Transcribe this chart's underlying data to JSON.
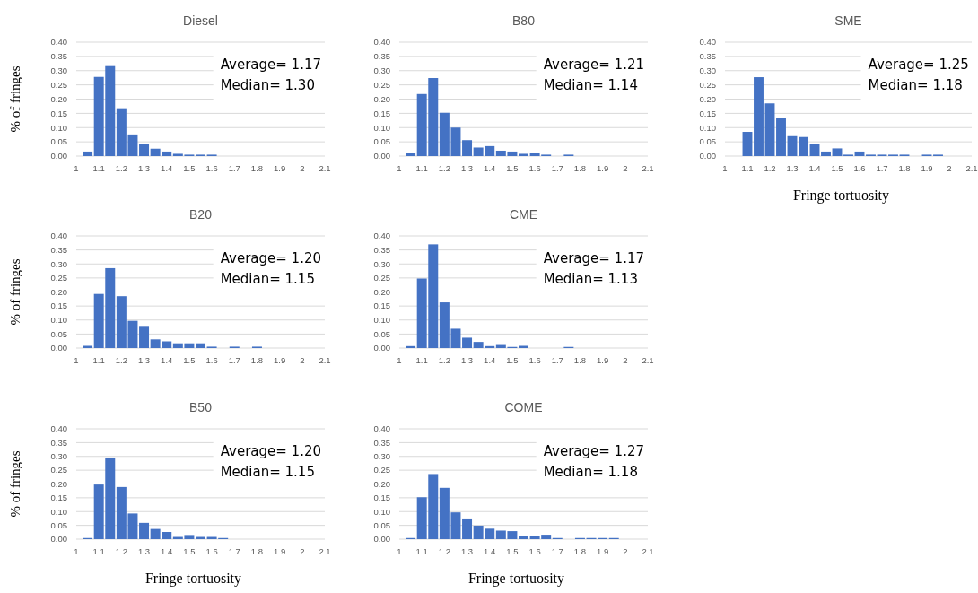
{
  "chart_data": [
    {
      "type": "histogram",
      "title": "Diesel",
      "ylabel": "% of fringes",
      "color": "#4472c4",
      "grid": "y",
      "bins": [
        1.025,
        1.075,
        1.125,
        1.175,
        1.225,
        1.275,
        1.325,
        1.375,
        1.425,
        1.475,
        1.525,
        1.575,
        1.625,
        1.675,
        1.725,
        1.775,
        1.825,
        1.875,
        1.925,
        1.975,
        2.025,
        2.075
      ],
      "values": [
        0.016,
        0.278,
        0.316,
        0.168,
        0.076,
        0.041,
        0.026,
        0.016,
        0.008,
        0.005,
        0.005,
        0.005,
        0,
        0,
        0,
        0,
        0,
        0,
        0,
        0,
        0
      ],
      "xlim": [
        1,
        2.1
      ],
      "xticks": [
        1,
        1.1,
        1.2,
        1.3,
        1.4,
        1.5,
        1.6,
        1.7,
        1.8,
        1.9,
        2,
        2.1
      ],
      "ylim": [
        0,
        0.4
      ],
      "yticks": [
        {
          "value": 0,
          "label": "0.00"
        },
        {
          "value": 0.05,
          "label": "0.05"
        },
        {
          "value": 0.1,
          "label": "0.10"
        },
        {
          "value": 0.15,
          "label": "0.15"
        },
        {
          "value": 0.2,
          "label": "0.20"
        },
        {
          "value": 0.25,
          "label": "0.25"
        },
        {
          "value": 0.3,
          "label": "0.30"
        },
        {
          "value": 0.35,
          "label": "0.35"
        },
        {
          "value": 0.4,
          "label": "0.40"
        }
      ],
      "annotations": [
        "Average= 1.17",
        "Median= 1.30"
      ]
    },
    {
      "type": "histogram",
      "title": "B80",
      "color": "#4472c4",
      "grid": "y",
      "bins": [
        1.025,
        1.075,
        1.125,
        1.175,
        1.225,
        1.275,
        1.325,
        1.375,
        1.425,
        1.475,
        1.525,
        1.575,
        1.625,
        1.675,
        1.725,
        1.775,
        1.825,
        1.875,
        1.925,
        1.975,
        2.025,
        2.075
      ],
      "values": [
        0.012,
        0.218,
        0.274,
        0.152,
        0.1,
        0.056,
        0.03,
        0.035,
        0.019,
        0.016,
        0.008,
        0.012,
        0.005,
        0,
        0.005,
        0,
        0,
        0,
        0,
        0,
        0
      ],
      "xlim": [
        1,
        2.1
      ],
      "xticks": [
        1,
        1.1,
        1.2,
        1.3,
        1.4,
        1.5,
        1.6,
        1.7,
        1.8,
        1.9,
        2,
        2.1
      ],
      "ylim": [
        0,
        0.4
      ],
      "yticks": [
        {
          "value": 0,
          "label": "0.00"
        },
        {
          "value": 0.05,
          "label": "0.05"
        },
        {
          "value": 0.1,
          "label": "0.10"
        },
        {
          "value": 0.15,
          "label": "0.15"
        },
        {
          "value": 0.2,
          "label": "0.20"
        },
        {
          "value": 0.25,
          "label": "0.25"
        },
        {
          "value": 0.3,
          "label": "0.30"
        },
        {
          "value": 0.35,
          "label": "0.35"
        },
        {
          "value": 0.4,
          "label": "0.40"
        }
      ],
      "annotations": [
        "Average= 1.21",
        "Median= 1.14"
      ]
    },
    {
      "type": "histogram",
      "title": "SME",
      "xlabel": "Fringe tortuosity",
      "color": "#4472c4",
      "grid": "y",
      "bins": [
        1.025,
        1.075,
        1.125,
        1.175,
        1.225,
        1.275,
        1.325,
        1.375,
        1.425,
        1.475,
        1.525,
        1.575,
        1.625,
        1.675,
        1.725,
        1.775,
        1.825,
        1.875,
        1.925,
        1.975,
        2.025,
        2.075
      ],
      "values": [
        0,
        0.085,
        0.277,
        0.185,
        0.134,
        0.07,
        0.067,
        0.041,
        0.016,
        0.027,
        0.005,
        0.016,
        0.005,
        0.005,
        0.005,
        0.005,
        0,
        0.005,
        0.005,
        0,
        0
      ],
      "xlim": [
        1,
        2.1
      ],
      "xticks": [
        1,
        1.1,
        1.2,
        1.3,
        1.4,
        1.5,
        1.6,
        1.7,
        1.8,
        1.9,
        2,
        2.1
      ],
      "ylim": [
        0,
        0.4
      ],
      "yticks": [
        {
          "value": 0,
          "label": "0.00"
        },
        {
          "value": 0.05,
          "label": "0.05"
        },
        {
          "value": 0.1,
          "label": "0.10"
        },
        {
          "value": 0.15,
          "label": "0.15"
        },
        {
          "value": 0.2,
          "label": "0.20"
        },
        {
          "value": 0.25,
          "label": "0.25"
        },
        {
          "value": 0.3,
          "label": "0.30"
        },
        {
          "value": 0.35,
          "label": "0.35"
        },
        {
          "value": 0.4,
          "label": "0.40"
        }
      ],
      "annotations": [
        "Average= 1.25",
        "Median= 1.18"
      ]
    },
    {
      "type": "histogram",
      "title": "B20",
      "ylabel": "% of fringes",
      "color": "#4472c4",
      "grid": "y",
      "bins": [
        1.025,
        1.075,
        1.125,
        1.175,
        1.225,
        1.275,
        1.325,
        1.375,
        1.425,
        1.475,
        1.525,
        1.575,
        1.625,
        1.675,
        1.725,
        1.775,
        1.825,
        1.875,
        1.925,
        1.975,
        2.025,
        2.075
      ],
      "values": [
        0.008,
        0.193,
        0.285,
        0.185,
        0.097,
        0.079,
        0.031,
        0.024,
        0.017,
        0.017,
        0.017,
        0.005,
        0,
        0.005,
        0,
        0.005,
        0,
        0,
        0,
        0,
        0
      ],
      "xlim": [
        1,
        2.1
      ],
      "xticks": [
        1,
        1.1,
        1.2,
        1.3,
        1.4,
        1.5,
        1.6,
        1.7,
        1.8,
        1.9,
        2,
        2.1
      ],
      "ylim": [
        0,
        0.4
      ],
      "yticks": [
        {
          "value": 0,
          "label": "0.00"
        },
        {
          "value": 0.05,
          "label": "0.05"
        },
        {
          "value": 0.1,
          "label": "0.10"
        },
        {
          "value": 0.15,
          "label": "0.15"
        },
        {
          "value": 0.2,
          "label": "0.20"
        },
        {
          "value": 0.25,
          "label": "0.25"
        },
        {
          "value": 0.3,
          "label": "0.30"
        },
        {
          "value": 0.35,
          "label": "0.35"
        },
        {
          "value": 0.4,
          "label": "0.40"
        }
      ],
      "annotations": [
        "Average= 1.20",
        "Median= 1.15"
      ]
    },
    {
      "type": "histogram",
      "title": "CME",
      "color": "#4472c4",
      "grid": "y",
      "bins": [
        1.025,
        1.075,
        1.125,
        1.175,
        1.225,
        1.275,
        1.325,
        1.375,
        1.425,
        1.475,
        1.525,
        1.575,
        1.625,
        1.675,
        1.725,
        1.775,
        1.825,
        1.875,
        1.925,
        1.975,
        2.025,
        2.075
      ],
      "values": [
        0.007,
        0.248,
        0.37,
        0.163,
        0.069,
        0.037,
        0.022,
        0.007,
        0.011,
        0.004,
        0.008,
        0,
        0,
        0,
        0.004,
        0,
        0,
        0,
        0,
        0,
        0
      ],
      "xlim": [
        1,
        2.1
      ],
      "xticks": [
        1,
        1.1,
        1.2,
        1.3,
        1.4,
        1.5,
        1.6,
        1.7,
        1.8,
        1.9,
        2,
        2.1
      ],
      "ylim": [
        0,
        0.4
      ],
      "yticks": [
        {
          "value": 0,
          "label": "0.00"
        },
        {
          "value": 0.05,
          "label": "0.05"
        },
        {
          "value": 0.1,
          "label": "0.10"
        },
        {
          "value": 0.15,
          "label": "0.15"
        },
        {
          "value": 0.2,
          "label": "0.20"
        },
        {
          "value": 0.25,
          "label": "0.25"
        },
        {
          "value": 0.3,
          "label": "0.30"
        },
        {
          "value": 0.35,
          "label": "0.35"
        },
        {
          "value": 0.4,
          "label": "0.40"
        }
      ],
      "annotations": [
        "Average= 1.17",
        "Median= 1.13"
      ]
    },
    {
      "type": "histogram",
      "title": "B50",
      "ylabel": "% of fringes",
      "xlabel": "Fringe tortuosity",
      "color": "#4472c4",
      "grid": "y",
      "bins": [
        1.025,
        1.075,
        1.125,
        1.175,
        1.225,
        1.275,
        1.325,
        1.375,
        1.425,
        1.475,
        1.525,
        1.575,
        1.625,
        1.675,
        1.725,
        1.775,
        1.825,
        1.875,
        1.925,
        1.975,
        2.025,
        2.075
      ],
      "values": [
        0.004,
        0.198,
        0.296,
        0.189,
        0.093,
        0.059,
        0.037,
        0.026,
        0.008,
        0.015,
        0.008,
        0.008,
        0.004,
        0,
        0,
        0,
        0,
        0,
        0,
        0,
        0
      ],
      "xlim": [
        1,
        2.1
      ],
      "xticks": [
        1,
        1.1,
        1.2,
        1.3,
        1.4,
        1.5,
        1.6,
        1.7,
        1.8,
        1.9,
        2,
        2.1
      ],
      "ylim": [
        0,
        0.4
      ],
      "yticks": [
        {
          "value": 0,
          "label": "0.00"
        },
        {
          "value": 0.05,
          "label": "0.05"
        },
        {
          "value": 0.1,
          "label": "0.10"
        },
        {
          "value": 0.15,
          "label": "0.15"
        },
        {
          "value": 0.2,
          "label": "0.20"
        },
        {
          "value": 0.25,
          "label": "0.25"
        },
        {
          "value": 0.3,
          "label": "0.30"
        },
        {
          "value": 0.35,
          "label": "0.35"
        },
        {
          "value": 0.4,
          "label": "0.40"
        }
      ],
      "annotations": [
        "Average= 1.20",
        "Median= 1.15"
      ]
    },
    {
      "type": "histogram",
      "title": "COME",
      "xlabel": "Fringe tortuosity",
      "color": "#4472c4",
      "grid": "y",
      "bins": [
        1.025,
        1.075,
        1.125,
        1.175,
        1.225,
        1.275,
        1.325,
        1.375,
        1.425,
        1.475,
        1.525,
        1.575,
        1.625,
        1.675,
        1.725,
        1.775,
        1.825,
        1.875,
        1.925,
        1.975,
        2.025,
        2.075
      ],
      "values": [
        0.004,
        0.152,
        0.236,
        0.186,
        0.097,
        0.075,
        0.049,
        0.038,
        0.031,
        0.029,
        0.012,
        0.012,
        0.016,
        0.004,
        0,
        0.004,
        0.004,
        0.004,
        0.004,
        0,
        0
      ],
      "xlim": [
        1,
        2.1
      ],
      "xticks": [
        1,
        1.1,
        1.2,
        1.3,
        1.4,
        1.5,
        1.6,
        1.7,
        1.8,
        1.9,
        2,
        2.1
      ],
      "ylim": [
        0,
        0.4
      ],
      "yticks": [
        {
          "value": 0,
          "label": "0.00"
        },
        {
          "value": 0.05,
          "label": "0.05"
        },
        {
          "value": 0.1,
          "label": "0.10"
        },
        {
          "value": 0.15,
          "label": "0.15"
        },
        {
          "value": 0.2,
          "label": "0.20"
        },
        {
          "value": 0.25,
          "label": "0.25"
        },
        {
          "value": 0.3,
          "label": "0.30"
        },
        {
          "value": 0.35,
          "label": "0.35"
        },
        {
          "value": 0.4,
          "label": "0.40"
        }
      ],
      "annotations": [
        "Average= 1.27",
        "Median= 1.18"
      ]
    }
  ]
}
